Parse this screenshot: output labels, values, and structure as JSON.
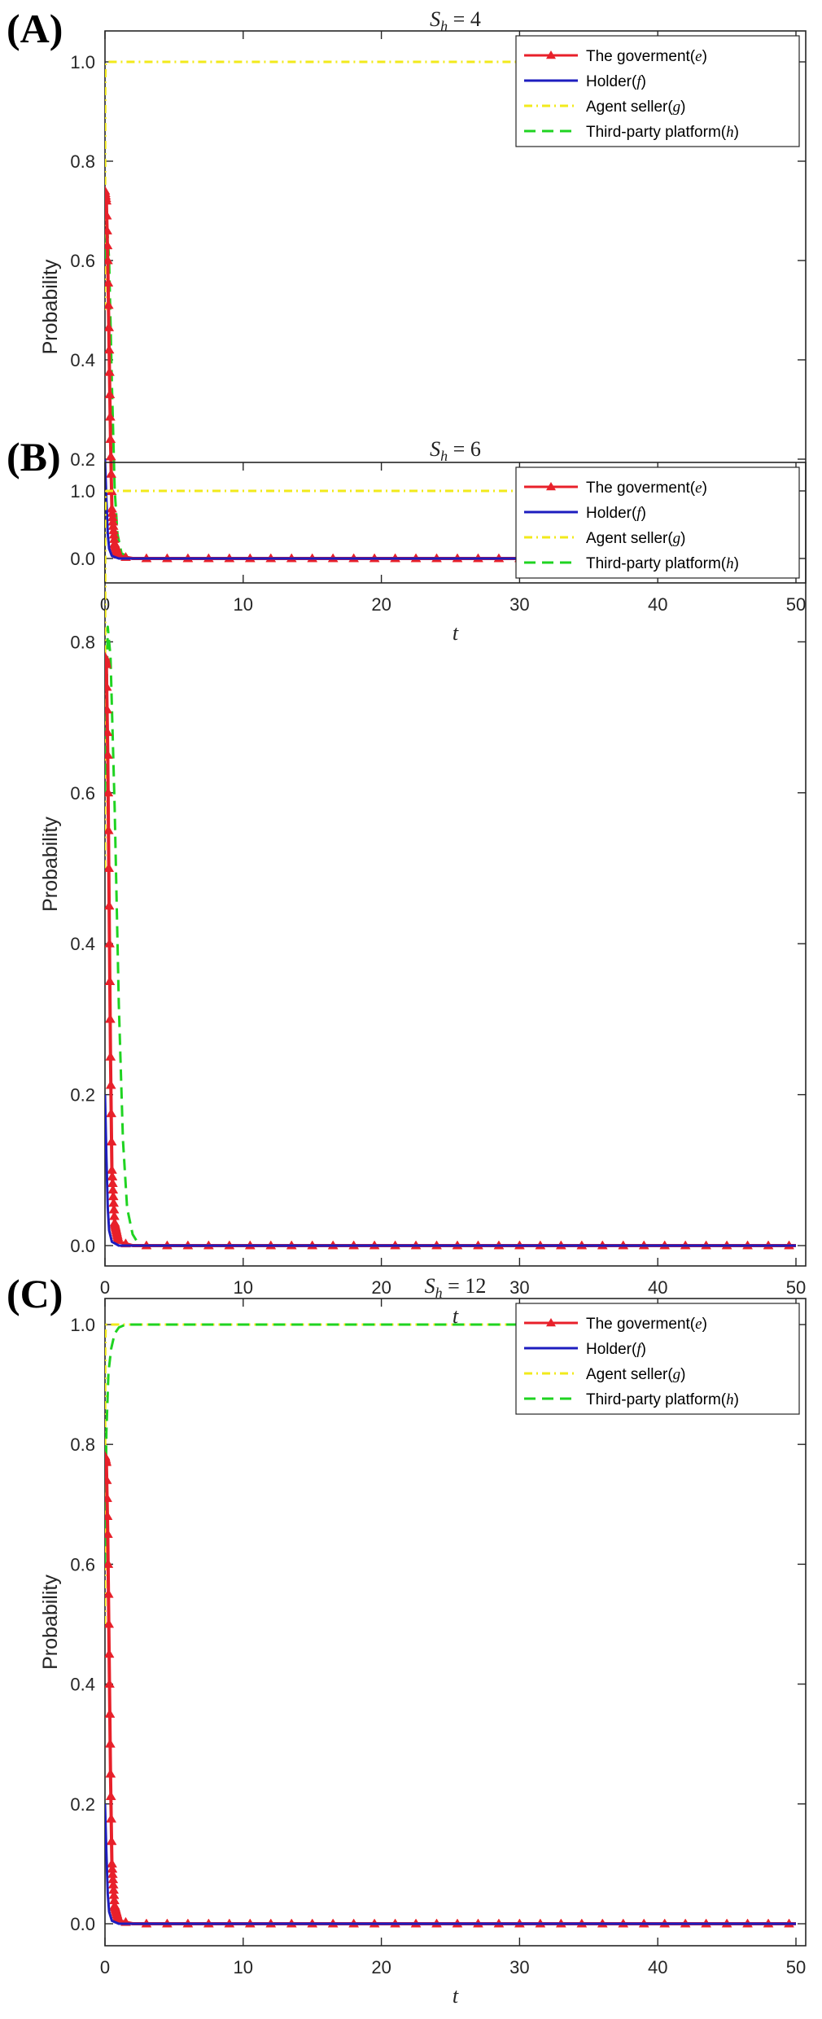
{
  "chart_data": [
    {
      "type": "line",
      "panel_label": "(A)",
      "title": {
        "main": "S",
        "sub": "h",
        "rest": " = 4"
      },
      "xlabel": "t",
      "ylabel": "Probability",
      "xlim": [
        0,
        50
      ],
      "ylim": [
        0,
        1
      ],
      "xticks": [
        0,
        10,
        20,
        30,
        40,
        50
      ],
      "yticks": [
        0.0,
        0.2,
        0.4,
        0.6,
        0.8,
        1.0
      ],
      "xtick_labels": [
        "0",
        "10",
        "20",
        "30",
        "40",
        "50"
      ],
      "ytick_labels": [
        "0.0",
        "0.2",
        "0.4",
        "0.6",
        "0.8",
        "1.0"
      ],
      "grid": false,
      "legend_position": "top-right",
      "series": [
        {
          "name": "The goverment",
          "name_symbol": "e",
          "color": "#e8202a",
          "style": "solid-triangle-markers",
          "x": [
            0,
            0.1,
            0.2,
            0.3,
            0.4,
            0.5,
            0.7,
            1.0,
            2,
            50
          ],
          "y": [
            0.74,
            0.72,
            0.6,
            0.42,
            0.24,
            0.1,
            0.03,
            0.005,
            0,
            0
          ]
        },
        {
          "name": "Holder",
          "name_symbol": "f",
          "color": "#1d1dbf",
          "style": "solid",
          "x": [
            0,
            0.1,
            0.2,
            0.3,
            0.5,
            1,
            50
          ],
          "y": [
            0.2,
            0.12,
            0.05,
            0.02,
            0.005,
            0,
            0
          ]
        },
        {
          "name": "Agent seller",
          "name_symbol": "g",
          "color": "#f2ea1b",
          "style": "dash-dot",
          "x": [
            0,
            0.02,
            0.05,
            0.1,
            50
          ],
          "y": [
            0.5,
            0.96,
            0.998,
            1,
            1
          ]
        },
        {
          "name": "Third-party platform",
          "name_symbol": "h",
          "color": "#1fd321",
          "style": "dashed",
          "x": [
            0,
            0.15,
            0.3,
            0.5,
            0.7,
            0.9,
            1.2,
            2,
            50
          ],
          "y": [
            0.6,
            0.67,
            0.6,
            0.35,
            0.14,
            0.05,
            0.01,
            0,
            0
          ]
        }
      ]
    },
    {
      "type": "line",
      "panel_label": "(B)",
      "title": {
        "main": "S",
        "sub": "h",
        "rest": " = 6"
      },
      "xlabel": "t",
      "ylabel": "Probability",
      "xlim": [
        0,
        50
      ],
      "ylim": [
        0,
        1
      ],
      "xticks": [
        0,
        10,
        20,
        30,
        40,
        50
      ],
      "yticks": [
        0.0,
        0.2,
        0.4,
        0.6,
        0.8,
        1.0
      ],
      "xtick_labels": [
        "0",
        "10",
        "20",
        "30",
        "40",
        "50"
      ],
      "ytick_labels": [
        "0.0",
        "0.2",
        "0.4",
        "0.6",
        "0.8",
        "1.0"
      ],
      "grid": false,
      "legend_position": "top-right",
      "series": [
        {
          "name": "The goverment",
          "name_symbol": "e",
          "color": "#e8202a",
          "style": "solid-triangle-markers",
          "x": [
            0,
            0.1,
            0.2,
            0.3,
            0.4,
            0.5,
            0.7,
            1.0,
            2,
            50
          ],
          "y": [
            0.78,
            0.77,
            0.65,
            0.45,
            0.25,
            0.1,
            0.03,
            0.005,
            0,
            0
          ]
        },
        {
          "name": "Holder",
          "name_symbol": "f",
          "color": "#1d1dbf",
          "style": "solid",
          "x": [
            0,
            0.1,
            0.2,
            0.3,
            0.5,
            1,
            50
          ],
          "y": [
            0.2,
            0.12,
            0.05,
            0.02,
            0.005,
            0,
            0
          ]
        },
        {
          "name": "Agent seller",
          "name_symbol": "g",
          "color": "#f2ea1b",
          "style": "dash-dot",
          "x": [
            0,
            0.02,
            0.05,
            0.1,
            50
          ],
          "y": [
            0.5,
            0.96,
            0.998,
            1,
            1
          ]
        },
        {
          "name": "Third-party platform",
          "name_symbol": "h",
          "color": "#1fd321",
          "style": "dashed",
          "x": [
            0,
            0.2,
            0.4,
            0.7,
            1.0,
            1.3,
            1.6,
            2.0,
            2.5,
            50
          ],
          "y": [
            0.6,
            0.82,
            0.78,
            0.58,
            0.32,
            0.14,
            0.05,
            0.015,
            0,
            0
          ]
        }
      ]
    },
    {
      "type": "line",
      "panel_label": "(C)",
      "title": {
        "main": "S",
        "sub": "h",
        "rest": " = 12"
      },
      "xlabel": "t",
      "ylabel": "Probability",
      "xlim": [
        0,
        50
      ],
      "ylim": [
        0,
        1
      ],
      "xticks": [
        0,
        10,
        20,
        30,
        40,
        50
      ],
      "yticks": [
        0.0,
        0.2,
        0.4,
        0.6,
        0.8,
        1.0
      ],
      "xtick_labels": [
        "0",
        "10",
        "20",
        "30",
        "40",
        "50"
      ],
      "ytick_labels": [
        "0.0",
        "0.2",
        "0.4",
        "0.6",
        "0.8",
        "1.0"
      ],
      "grid": false,
      "legend_position": "top-right",
      "series": [
        {
          "name": "The goverment",
          "name_symbol": "e",
          "color": "#e8202a",
          "style": "solid-triangle-markers",
          "x": [
            0,
            0.1,
            0.2,
            0.3,
            0.4,
            0.5,
            0.7,
            1.0,
            2,
            50
          ],
          "y": [
            0.78,
            0.77,
            0.65,
            0.45,
            0.25,
            0.1,
            0.03,
            0.005,
            0,
            0
          ]
        },
        {
          "name": "Holder",
          "name_symbol": "f",
          "color": "#1d1dbf",
          "style": "solid",
          "x": [
            0,
            0.1,
            0.2,
            0.3,
            0.5,
            1,
            50
          ],
          "y": [
            0.2,
            0.12,
            0.05,
            0.02,
            0.005,
            0,
            0
          ]
        },
        {
          "name": "Agent seller",
          "name_symbol": "g",
          "color": "#f2ea1b",
          "style": "dash-dot",
          "x": [
            0,
            0.02,
            0.05,
            0.1,
            50
          ],
          "y": [
            0.5,
            0.96,
            0.998,
            1,
            1
          ]
        },
        {
          "name": "Third-party platform",
          "name_symbol": "h",
          "color": "#1fd321",
          "style": "dashed",
          "x": [
            0,
            0.1,
            0.25,
            0.45,
            0.7,
            1.0,
            1.5,
            50
          ],
          "y": [
            0.6,
            0.82,
            0.92,
            0.96,
            0.985,
            0.995,
            1,
            1
          ]
        }
      ]
    }
  ]
}
